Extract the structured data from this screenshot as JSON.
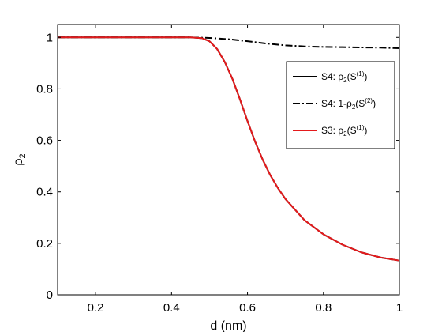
{
  "chart_data": {
    "type": "line",
    "title": "",
    "xlabel": "d (nm)",
    "ylabel": "ρ2",
    "xlim": [
      0.1,
      1.0
    ],
    "ylim": [
      0,
      1.05
    ],
    "xticks": [
      0.2,
      0.4,
      0.6,
      0.8,
      1.0
    ],
    "xtick_labels": [
      "0.2",
      "0.4",
      "0.6",
      "0.8",
      "1"
    ],
    "yticks": [
      0,
      0.2,
      0.4,
      0.6,
      0.8,
      1.0
    ],
    "ytick_labels": [
      "0",
      "0.2",
      "0.4",
      "0.6",
      "0.8",
      "1"
    ],
    "grid": false,
    "legend_position": "upper-right",
    "series": [
      {
        "name": "S4: ρ2(S(1))",
        "legend": {
          "prefix": "S4: ",
          "base": "ρ",
          "sub": "2",
          "open": "(S",
          "sup": "(1)",
          "close": ")"
        },
        "color": "#000000",
        "style": "solid",
        "x": [
          0.1,
          0.2,
          0.3,
          0.4,
          0.45,
          0.48,
          0.5,
          0.52,
          0.54,
          0.56,
          0.58,
          0.6,
          0.62,
          0.64,
          0.66,
          0.68,
          0.7,
          0.75,
          0.8,
          0.85,
          0.9,
          0.95,
          1.0
        ],
        "y": [
          1.0,
          1.0,
          1.0,
          1.0,
          1.0,
          0.997,
          0.985,
          0.955,
          0.905,
          0.84,
          0.76,
          0.675,
          0.595,
          0.525,
          0.465,
          0.415,
          0.372,
          0.29,
          0.235,
          0.195,
          0.165,
          0.145,
          0.133
        ]
      },
      {
        "name": "S4: 1-ρ2(S(2))",
        "legend": {
          "prefix": "S4: 1-",
          "base": "ρ",
          "sub": "2",
          "open": "(S",
          "sup": "(2)",
          "close": ")"
        },
        "color": "#000000",
        "style": "dashdot",
        "x": [
          0.1,
          0.2,
          0.3,
          0.4,
          0.45,
          0.5,
          0.55,
          0.6,
          0.65,
          0.7,
          0.75,
          0.8,
          0.85,
          0.9,
          0.95,
          1.0
        ],
        "y": [
          1.0,
          1.0,
          1.0,
          1.0,
          1.0,
          0.998,
          0.993,
          0.985,
          0.976,
          0.969,
          0.965,
          0.963,
          0.962,
          0.961,
          0.96,
          0.958
        ]
      },
      {
        "name": "S3: ρ2(S(1))",
        "legend": {
          "prefix": "S3: ",
          "base": "ρ",
          "sub": "2",
          "open": "(S",
          "sup": "(1)",
          "close": ")"
        },
        "color": "#e41a1c",
        "style": "solid",
        "x": [
          0.1,
          0.2,
          0.3,
          0.4,
          0.45,
          0.48,
          0.5,
          0.52,
          0.54,
          0.56,
          0.58,
          0.6,
          0.62,
          0.64,
          0.66,
          0.68,
          0.7,
          0.75,
          0.8,
          0.85,
          0.9,
          0.95,
          1.0
        ],
        "y": [
          1.0,
          1.0,
          1.0,
          1.0,
          1.0,
          0.997,
          0.985,
          0.955,
          0.905,
          0.84,
          0.76,
          0.675,
          0.595,
          0.525,
          0.465,
          0.415,
          0.372,
          0.29,
          0.235,
          0.195,
          0.165,
          0.145,
          0.133
        ]
      }
    ]
  }
}
